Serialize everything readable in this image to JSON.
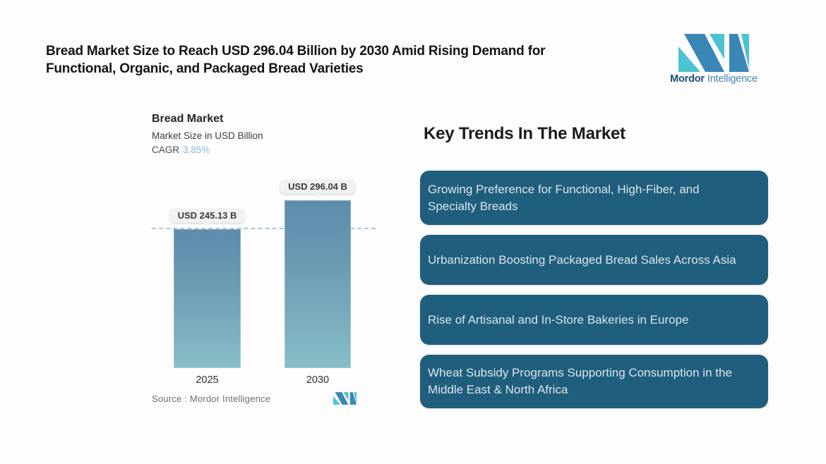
{
  "header": {
    "title": "Bread Market Size to Reach USD 296.04 Billion by 2030 Amid Rising Demand for\nFunctional, Organic, and Packaged Bread Varieties",
    "brand": {
      "name_bold": "Mordor",
      "name_light": "Intelligence"
    }
  },
  "chart_data": {
    "type": "bar",
    "title": "Bread Market",
    "subtitle": "Market Size in USD Billion",
    "cagr_label": "CAGR",
    "cagr_value": "3.85%",
    "categories": [
      "2025",
      "2030"
    ],
    "values": [
      245.13,
      296.04
    ],
    "value_labels": [
      "USD 245.13 B",
      "USD 296.04 B"
    ],
    "reference_line_value": 245.13,
    "ylim": [
      0,
      296.04
    ],
    "grid": "off",
    "legend": "none",
    "source": "Source :  Mordor Intelligence"
  },
  "trends": {
    "heading": "Key Trends In The Market",
    "items": [
      "Growing Preference for Functional, High-Fiber, and\nSpecialty Breads",
      "Urbanization Boosting Packaged Bread Sales Across Asia",
      "Rise of Artisanal and In-Store Bakeries in Europe",
      "Wheat Subsidy Programs Supporting Consumption in the\nMiddle East & North Africa"
    ]
  },
  "colors": {
    "card_bg": "#205e7d",
    "card_text": "#d9e6ec",
    "logo_blue": "#3a87b7",
    "logo_teal": "#4cc3d2",
    "bar_gradient_top": "#5d8bab",
    "bar_gradient_bottom": "#87bec7",
    "dashed_line": "#a3c9db",
    "cagr_value": "#8ab9d6"
  }
}
